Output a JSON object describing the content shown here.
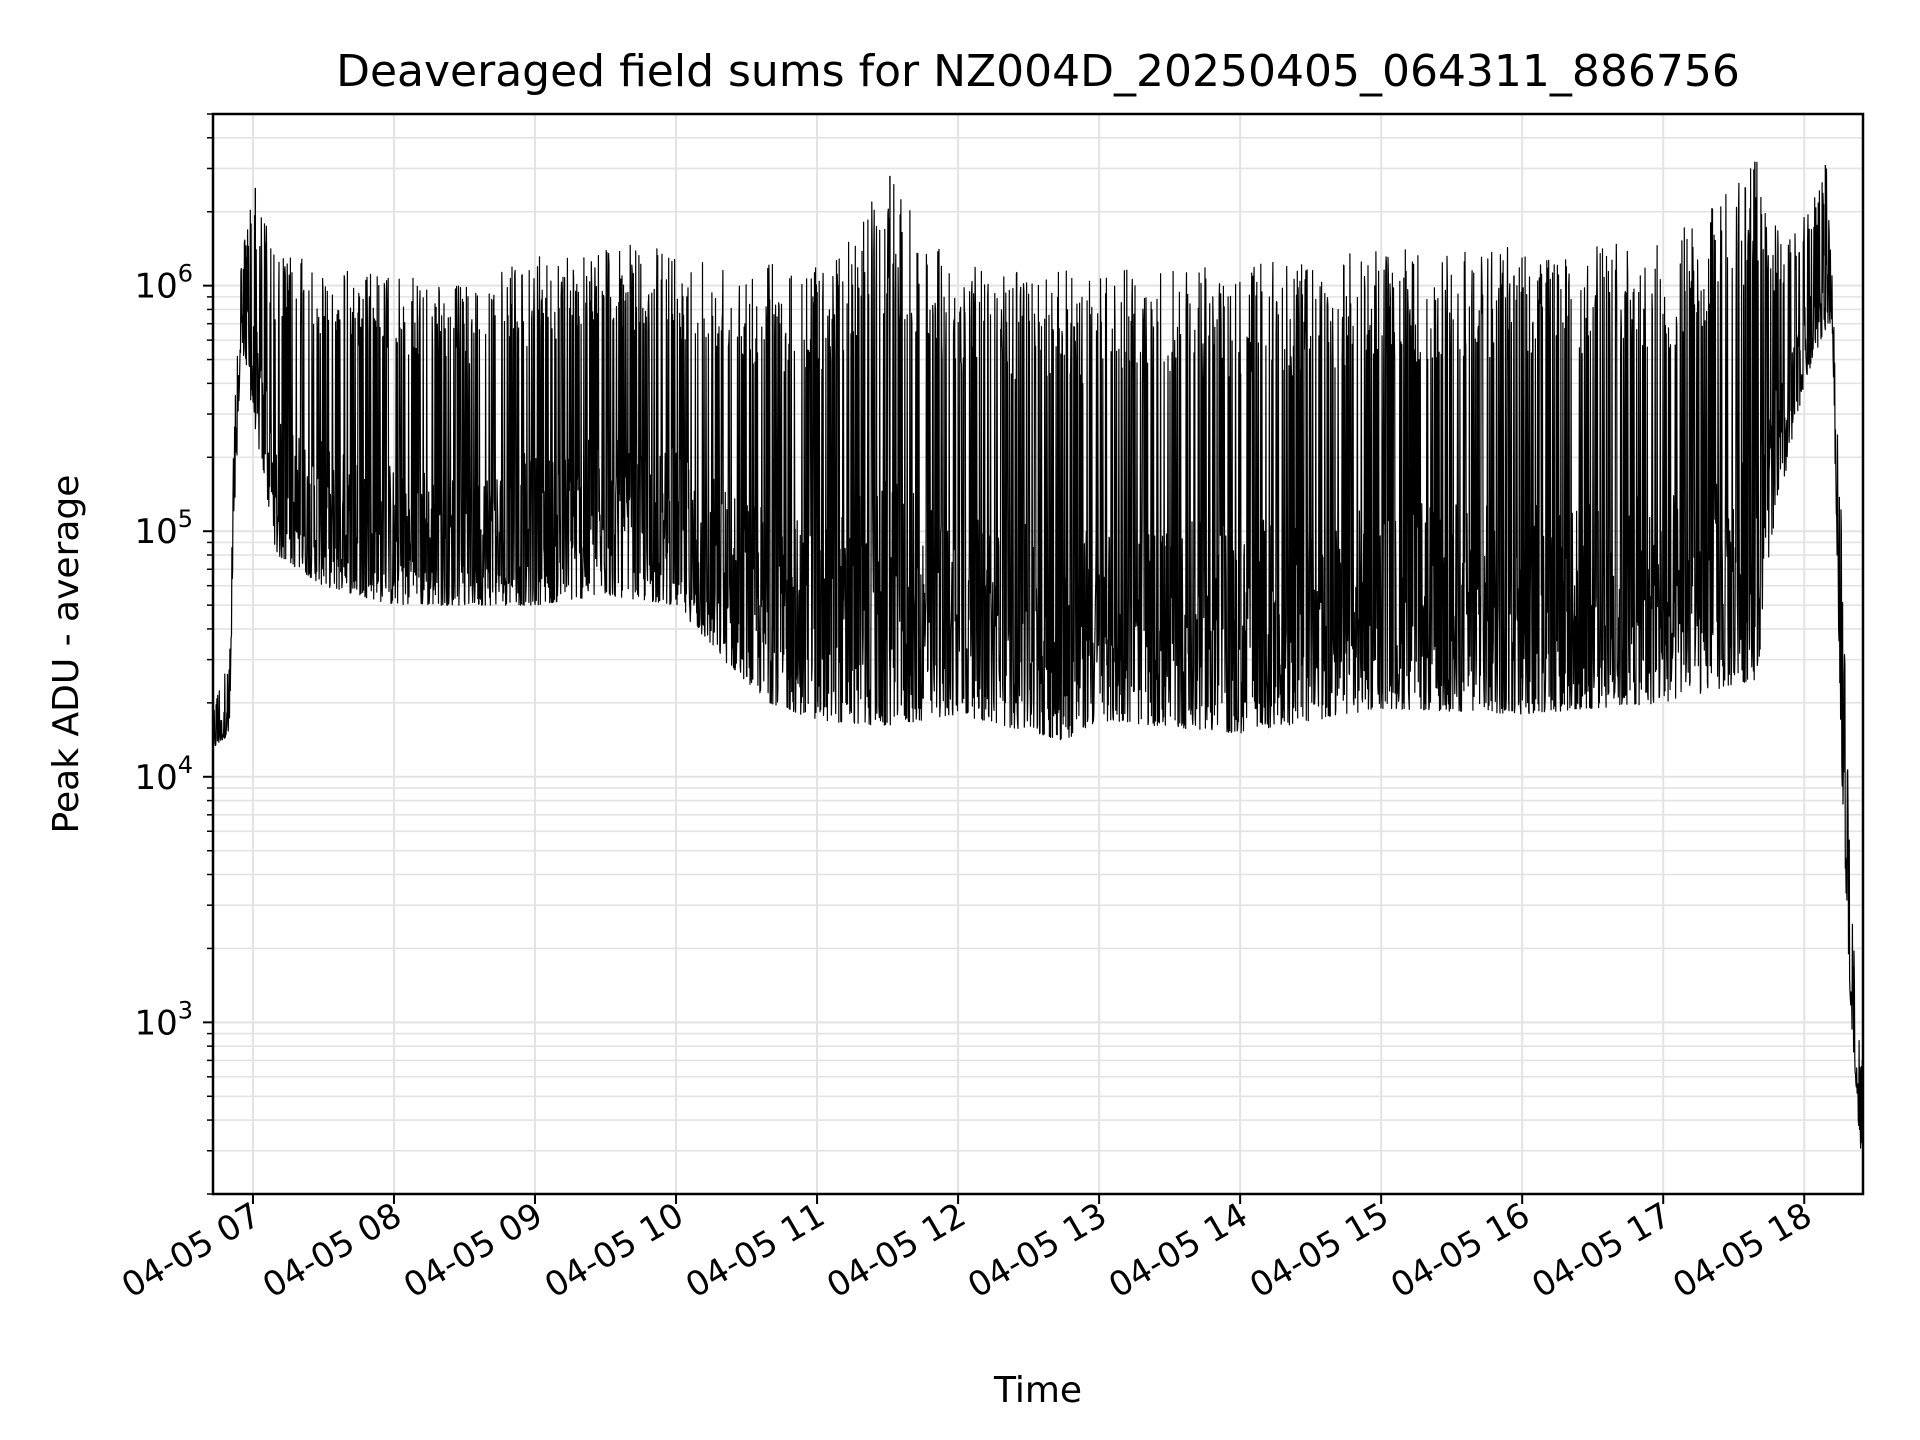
{
  "chart_data": {
    "type": "line",
    "title": "Deaveraged field sums for NZ004D_20250405_064311_886756",
    "xlabel": "Time",
    "ylabel": "Peak ADU - average",
    "yscale": "log",
    "ylim": [
      200,
      5000000
    ],
    "xlim": [
      "2025-04-05 06:43",
      "2025-04-05 18:25"
    ],
    "grid": true,
    "line_color": "#000000",
    "x_ticks": [
      {
        "value": "2025-04-05 07:00",
        "label": "04-05 07"
      },
      {
        "value": "2025-04-05 08:00",
        "label": "04-05 08"
      },
      {
        "value": "2025-04-05 09:00",
        "label": "04-05 09"
      },
      {
        "value": "2025-04-05 10:00",
        "label": "04-05 10"
      },
      {
        "value": "2025-04-05 11:00",
        "label": "04-05 11"
      },
      {
        "value": "2025-04-05 12:00",
        "label": "04-05 12"
      },
      {
        "value": "2025-04-05 13:00",
        "label": "04-05 13"
      },
      {
        "value": "2025-04-05 14:00",
        "label": "04-05 14"
      },
      {
        "value": "2025-04-05 15:00",
        "label": "04-05 15"
      },
      {
        "value": "2025-04-05 16:00",
        "label": "04-05 16"
      },
      {
        "value": "2025-04-05 17:00",
        "label": "04-05 17"
      },
      {
        "value": "2025-04-05 18:00",
        "label": "04-05 18"
      }
    ],
    "y_ticks": [
      {
        "value": 1000,
        "base": "10",
        "exp": "3"
      },
      {
        "value": 10000,
        "base": "10",
        "exp": "4"
      },
      {
        "value": 100000,
        "base": "10",
        "exp": "5"
      },
      {
        "value": 1000000,
        "base": "10",
        "exp": "6"
      }
    ],
    "series": [
      {
        "envelope": [
          {
            "x": "2025-04-05 06:43",
            "low": 13000,
            "high": 20000
          },
          {
            "x": "2025-04-05 06:50",
            "low": 15000,
            "high": 30000
          },
          {
            "x": "2025-04-05 06:52",
            "low": 100000,
            "high": 300000
          },
          {
            "x": "2025-04-05 06:55",
            "low": 600000,
            "high": 1300000
          },
          {
            "x": "2025-04-05 07:00",
            "low": 300000,
            "high": 2500000
          },
          {
            "x": "2025-04-05 07:10",
            "low": 80000,
            "high": 1400000
          },
          {
            "x": "2025-04-05 07:30",
            "low": 60000,
            "high": 1200000
          },
          {
            "x": "2025-04-05 08:00",
            "low": 50000,
            "high": 1100000
          },
          {
            "x": "2025-04-05 08:30",
            "low": 50000,
            "high": 1000000
          },
          {
            "x": "2025-04-05 09:00",
            "low": 50000,
            "high": 1300000
          },
          {
            "x": "2025-04-05 09:30",
            "low": 55000,
            "high": 1500000
          },
          {
            "x": "2025-04-05 10:00",
            "low": 50000,
            "high": 1400000
          },
          {
            "x": "2025-04-05 10:20",
            "low": 30000,
            "high": 1300000
          },
          {
            "x": "2025-04-05 10:40",
            "low": 20000,
            "high": 1300000
          },
          {
            "x": "2025-04-05 11:00",
            "low": 17000,
            "high": 1200000
          },
          {
            "x": "2025-04-05 11:30",
            "low": 16000,
            "high": 2800000
          },
          {
            "x": "2025-04-05 12:00",
            "low": 18000,
            "high": 1200000
          },
          {
            "x": "2025-04-05 12:45",
            "low": 14000,
            "high": 1150000
          },
          {
            "x": "2025-04-05 13:00",
            "low": 17000,
            "high": 1150000
          },
          {
            "x": "2025-04-05 14:00",
            "low": 15000,
            "high": 1200000
          },
          {
            "x": "2025-04-05 15:00",
            "low": 19000,
            "high": 1400000
          },
          {
            "x": "2025-04-05 16:00",
            "low": 18000,
            "high": 1500000
          },
          {
            "x": "2025-04-05 17:00",
            "low": 20000,
            "high": 1500000
          },
          {
            "x": "2025-04-05 17:40",
            "low": 25000,
            "high": 3200000
          },
          {
            "x": "2025-04-05 17:45",
            "low": 80000,
            "high": 1800000
          },
          {
            "x": "2025-04-05 18:00",
            "low": 400000,
            "high": 1900000
          },
          {
            "x": "2025-04-05 18:10",
            "low": 700000,
            "high": 3100000
          },
          {
            "x": "2025-04-05 18:12",
            "low": 600000,
            "high": 1000000
          },
          {
            "x": "2025-04-05 18:16",
            "low": 10000,
            "high": 100000
          },
          {
            "x": "2025-04-05 18:20",
            "low": 900,
            "high": 3000
          },
          {
            "x": "2025-04-05 18:24",
            "low": 300,
            "high": 700
          }
        ],
        "spikes": [
          {
            "x": "2025-04-05 07:01",
            "y": 2500000
          },
          {
            "x": "2025-04-05 11:31",
            "y": 2800000
          },
          {
            "x": "2025-04-05 17:39",
            "y": 3200000
          },
          {
            "x": "2025-04-05 18:09",
            "y": 3100000
          }
        ]
      }
    ]
  }
}
